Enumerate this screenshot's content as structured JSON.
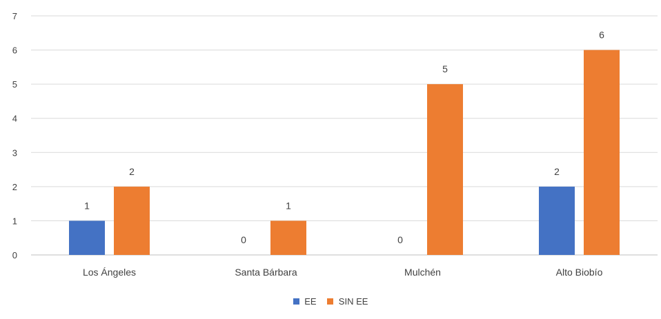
{
  "chart_data": {
    "type": "bar",
    "categories": [
      "Los Ángeles",
      "Santa Bárbara",
      "Mulchén",
      "Alto Biobío"
    ],
    "series": [
      {
        "name": "EE",
        "values": [
          1,
          0,
          0,
          2
        ],
        "color": "#4472C4"
      },
      {
        "name": "SIN EE",
        "values": [
          2,
          1,
          5,
          6
        ],
        "color": "#ED7D31"
      }
    ],
    "ylim": [
      0,
      7
    ],
    "yticks": [
      0,
      1,
      2,
      3,
      4,
      5,
      6,
      7
    ],
    "grid": true,
    "legend_position": "bottom",
    "data_labels": true,
    "title": "",
    "xlabel": "",
    "ylabel": ""
  }
}
